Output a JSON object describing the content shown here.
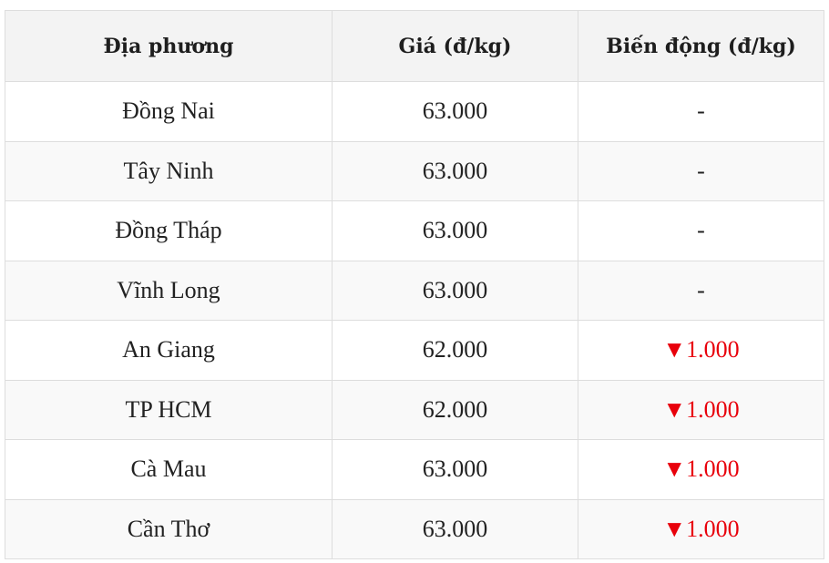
{
  "table": {
    "headers": [
      "Địa phương",
      "Giá (đ/kg)",
      "Biến động (đ/kg)"
    ],
    "rows": [
      {
        "location": "Đồng Nai",
        "price": "63.000",
        "change": "-",
        "direction": "none"
      },
      {
        "location": "Tây Ninh",
        "price": "63.000",
        "change": "-",
        "direction": "none"
      },
      {
        "location": "Đồng Tháp",
        "price": "63.000",
        "change": "-",
        "direction": "none"
      },
      {
        "location": "Vĩnh Long",
        "price": "63.000",
        "change": "-",
        "direction": "none"
      },
      {
        "location": "An Giang",
        "price": "62.000",
        "change": "▼1.000",
        "direction": "down"
      },
      {
        "location": "TP HCM",
        "price": "62.000",
        "change": "▼1.000",
        "direction": "down"
      },
      {
        "location": "Cà Mau",
        "price": "63.000",
        "change": "▼1.000",
        "direction": "down"
      },
      {
        "location": "Cần Thơ",
        "price": "63.000",
        "change": "▼1.000",
        "direction": "down"
      }
    ]
  },
  "colors": {
    "down": "#e8000b",
    "header_bg": "#f3f3f3",
    "stripe_bg": "#f9f9f9"
  }
}
